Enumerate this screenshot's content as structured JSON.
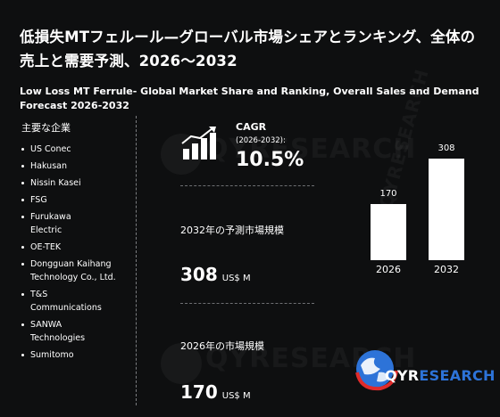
{
  "header": {
    "title_jp": "低損失MTフェルール—グローバル市場シェアとランキング、全体の売上と需要予測、2026～2032",
    "title_en": "Low Loss MT Ferrule- Global Market Share and Ranking, Overall Sales and Demand Forecast 2026-2032"
  },
  "companies": {
    "heading": "主要な企業",
    "items": [
      "US Conec",
      "Hakusan",
      "Nissin Kasei",
      "FSG",
      "Furukawa Electric",
      "OE-TEK",
      "Dongguan Kaihang Technology Co., Ltd.",
      "T&S Communications",
      "SANWA Technologies",
      "Sumitomo"
    ]
  },
  "stats": {
    "cagr_label": "CAGR",
    "cagr_period": "(2026-2032):",
    "cagr_value": "10.5%",
    "market_2032_label": "2032年の予測市場規模",
    "market_2032_value": "308",
    "market_2032_unit": "US$ M",
    "market_2026_label": "2026年の市場規模",
    "market_2026_value": "170",
    "market_2026_unit": "US$ M"
  },
  "chart_data": {
    "type": "bar",
    "categories": [
      "2026",
      "2032"
    ],
    "values": [
      170,
      308
    ],
    "title": "",
    "xlabel": "",
    "ylabel": "",
    "ylim": [
      0,
      308
    ]
  },
  "logo": {
    "text_qyr": "QYR",
    "text_research": "ESEARCH",
    "watermark": "QYRESEARCH"
  },
  "colors": {
    "background": "#0e0f10",
    "text": "#ffffff",
    "bar": "#ffffff",
    "brand_blue": "#2d73d8",
    "brand_red": "#e02b2b"
  }
}
